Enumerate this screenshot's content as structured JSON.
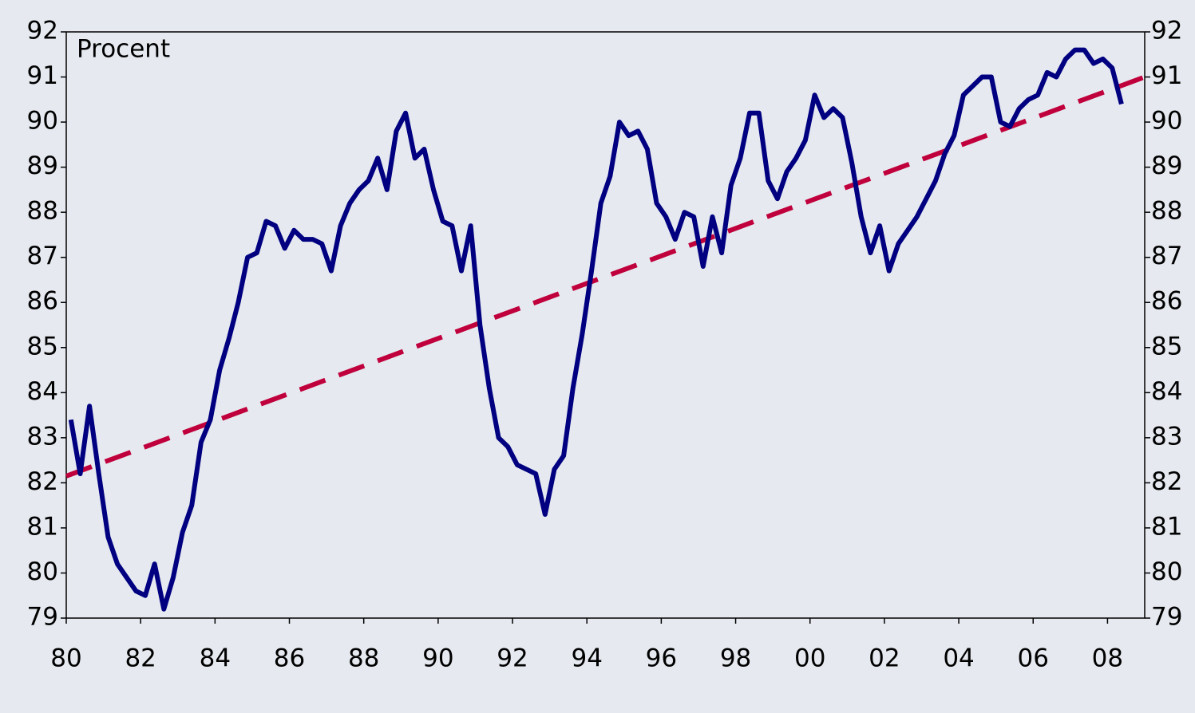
{
  "chart_data": {
    "type": "line",
    "annotation": "Procent",
    "x": [
      1980.125,
      1980.375,
      1980.625,
      1980.875,
      1981.125,
      1981.375,
      1981.625,
      1981.875,
      1982.125,
      1982.375,
      1982.625,
      1982.875,
      1983.125,
      1983.375,
      1983.625,
      1983.875,
      1984.125,
      1984.375,
      1984.625,
      1984.875,
      1985.125,
      1985.375,
      1985.625,
      1985.875,
      1986.125,
      1986.375,
      1986.625,
      1986.875,
      1987.125,
      1987.375,
      1987.625,
      1987.875,
      1988.125,
      1988.375,
      1988.625,
      1988.875,
      1989.125,
      1989.375,
      1989.625,
      1989.875,
      1990.125,
      1990.375,
      1990.625,
      1990.875,
      1991.125,
      1991.375,
      1991.625,
      1991.875,
      1992.125,
      1992.375,
      1992.625,
      1992.875,
      1993.125,
      1993.375,
      1993.625,
      1993.875,
      1994.125,
      1994.375,
      1994.625,
      1994.875,
      1995.125,
      1995.375,
      1995.625,
      1995.875,
      1996.125,
      1996.375,
      1996.625,
      1996.875,
      1997.125,
      1997.375,
      1997.625,
      1997.875,
      1998.125,
      1998.375,
      1998.625,
      1998.875,
      1999.125,
      1999.375,
      1999.625,
      1999.875,
      2000.125,
      2000.375,
      2000.625,
      2000.875,
      2001.125,
      2001.375,
      2001.625,
      2001.875,
      2002.125,
      2002.375,
      2002.625,
      2002.875,
      2003.125,
      2003.375,
      2003.625,
      2003.875,
      2004.125,
      2004.375,
      2004.625,
      2004.875,
      2005.125,
      2005.375,
      2005.625,
      2005.875,
      2006.125,
      2006.375,
      2006.625,
      2006.875,
      2007.125,
      2007.375,
      2007.625,
      2007.875,
      2008.125,
      2008.375
    ],
    "series": [
      {
        "color": "#000080",
        "values": [
          83.4,
          82.2,
          83.7,
          82.2,
          80.8,
          80.2,
          79.9,
          79.6,
          79.5,
          80.2,
          79.2,
          79.9,
          80.9,
          81.5,
          82.9,
          83.4,
          84.5,
          85.2,
          86.0,
          87.0,
          87.1,
          87.8,
          87.7,
          87.2,
          87.6,
          87.4,
          87.4,
          87.3,
          86.7,
          87.7,
          88.2,
          88.5,
          88.7,
          89.2,
          88.5,
          89.8,
          90.2,
          89.2,
          89.4,
          88.5,
          87.8,
          87.7,
          86.7,
          87.7,
          85.5,
          84.1,
          83.0,
          82.8,
          82.4,
          82.3,
          82.2,
          81.3,
          82.3,
          82.6,
          84.1,
          85.3,
          86.7,
          88.2,
          88.8,
          90.0,
          89.7,
          89.8,
          89.4,
          88.2,
          87.9,
          87.4,
          88.0,
          87.9,
          86.8,
          87.9,
          87.1,
          88.6,
          89.2,
          90.2,
          90.2,
          88.7,
          88.3,
          88.9,
          89.2,
          89.6,
          90.6,
          90.1,
          90.3,
          90.1,
          89.1,
          87.9,
          87.1,
          87.7,
          86.7,
          87.3,
          87.6,
          87.9,
          88.3,
          88.7,
          89.3,
          89.7,
          90.6,
          90.8,
          91.0,
          91.0,
          90.0,
          89.9,
          90.3,
          90.5,
          90.6,
          91.1,
          91.0,
          91.4,
          91.6,
          91.6,
          91.3,
          91.4,
          91.2,
          90.4
        ]
      }
    ],
    "trend": {
      "color": "#c0003c",
      "dashed": true,
      "x": [
        1980,
        2009
      ],
      "values": [
        82.15,
        91.0
      ]
    },
    "xlim": [
      1980,
      2009
    ],
    "xticks": [
      {
        "value": 1980,
        "label": "80"
      },
      {
        "value": 1982,
        "label": "82"
      },
      {
        "value": 1984,
        "label": "84"
      },
      {
        "value": 1986,
        "label": "86"
      },
      {
        "value": 1988,
        "label": "88"
      },
      {
        "value": 1990,
        "label": "90"
      },
      {
        "value": 1992,
        "label": "92"
      },
      {
        "value": 1994,
        "label": "94"
      },
      {
        "value": 1996,
        "label": "96"
      },
      {
        "value": 1998,
        "label": "98"
      },
      {
        "value": 2000,
        "label": "00"
      },
      {
        "value": 2002,
        "label": "02"
      },
      {
        "value": 2004,
        "label": "04"
      },
      {
        "value": 2006,
        "label": "06"
      },
      {
        "value": 2008,
        "label": "08"
      }
    ],
    "ylim": [
      79,
      92
    ],
    "yticks": [
      79,
      80,
      81,
      82,
      83,
      84,
      85,
      86,
      87,
      88,
      89,
      90,
      91,
      92
    ],
    "y2lim": [
      79,
      92
    ],
    "y2ticks": [
      79,
      80,
      81,
      82,
      83,
      84,
      85,
      86,
      87,
      88,
      89,
      90,
      91,
      92
    ]
  }
}
